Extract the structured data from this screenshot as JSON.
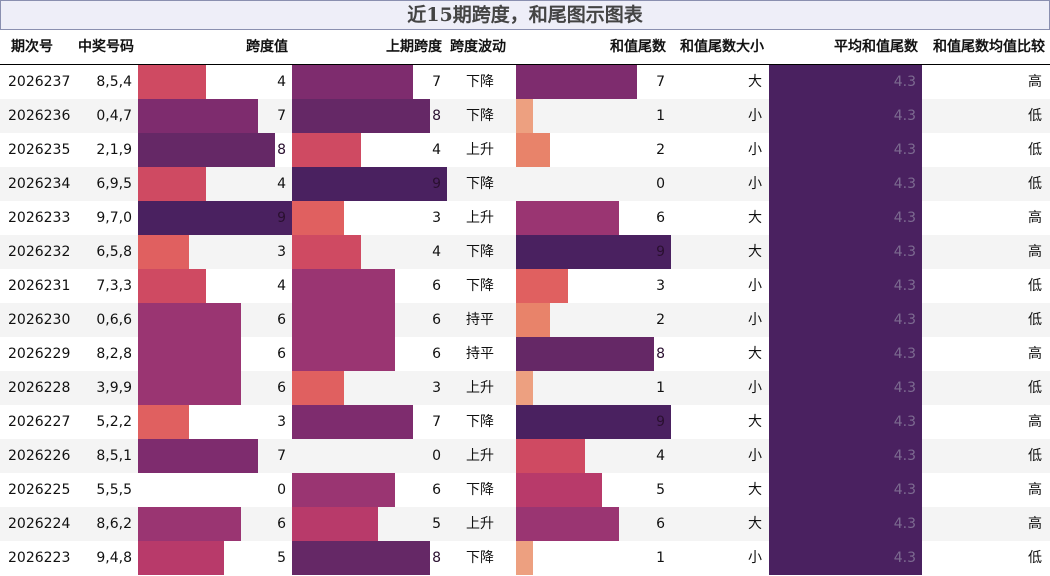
{
  "title": "近15期跨度，和尾图示图表",
  "headers": [
    "期次号",
    "中奖号码",
    "跨度值",
    "上期跨度",
    "跨度波动",
    "和值尾数",
    "和值尾数大小",
    "平均和值尾数",
    "和值尾数均值比较"
  ],
  "chart_data": {
    "type": "table",
    "title": "近15期跨度，和尾图示图表",
    "columns": [
      "期次号",
      "中奖号码",
      "跨度值",
      "上期跨度",
      "跨度波动",
      "和值尾数",
      "和值尾数大小",
      "平均和值尾数",
      "和值尾数均值比较"
    ],
    "bar_max": 9,
    "average_sum_tail": "4.3",
    "rows": [
      {
        "issue": "2026237",
        "numbers": "8,5,4",
        "span": 4,
        "prev_span": 7,
        "trend": "下降",
        "tail": 7,
        "size": "大",
        "compare": "高"
      },
      {
        "issue": "2026236",
        "numbers": "0,4,7",
        "span": 7,
        "prev_span": 8,
        "trend": "下降",
        "tail": 1,
        "size": "小",
        "compare": "低"
      },
      {
        "issue": "2026235",
        "numbers": "2,1,9",
        "span": 8,
        "prev_span": 4,
        "trend": "上升",
        "tail": 2,
        "size": "小",
        "compare": "低"
      },
      {
        "issue": "2026234",
        "numbers": "6,9,5",
        "span": 4,
        "prev_span": 9,
        "trend": "下降",
        "tail": 0,
        "size": "小",
        "compare": "低"
      },
      {
        "issue": "2026233",
        "numbers": "9,7,0",
        "span": 9,
        "prev_span": 3,
        "trend": "上升",
        "tail": 6,
        "size": "大",
        "compare": "高"
      },
      {
        "issue": "2026232",
        "numbers": "6,5,8",
        "span": 3,
        "prev_span": 4,
        "trend": "下降",
        "tail": 9,
        "size": "大",
        "compare": "高"
      },
      {
        "issue": "2026231",
        "numbers": "7,3,3",
        "span": 4,
        "prev_span": 6,
        "trend": "下降",
        "tail": 3,
        "size": "小",
        "compare": "低"
      },
      {
        "issue": "2026230",
        "numbers": "0,6,6",
        "span": 6,
        "prev_span": 6,
        "trend": "持平",
        "tail": 2,
        "size": "小",
        "compare": "低"
      },
      {
        "issue": "2026229",
        "numbers": "8,2,8",
        "span": 6,
        "prev_span": 6,
        "trend": "持平",
        "tail": 8,
        "size": "大",
        "compare": "高"
      },
      {
        "issue": "2026228",
        "numbers": "3,9,9",
        "span": 6,
        "prev_span": 3,
        "trend": "上升",
        "tail": 1,
        "size": "小",
        "compare": "低"
      },
      {
        "issue": "2026227",
        "numbers": "5,2,2",
        "span": 3,
        "prev_span": 7,
        "trend": "下降",
        "tail": 9,
        "size": "大",
        "compare": "高"
      },
      {
        "issue": "2026226",
        "numbers": "8,5,1",
        "span": 7,
        "prev_span": 0,
        "trend": "上升",
        "tail": 4,
        "size": "小",
        "compare": "低"
      },
      {
        "issue": "2026225",
        "numbers": "5,5,5",
        "span": 0,
        "prev_span": 6,
        "trend": "下降",
        "tail": 5,
        "size": "大",
        "compare": "高"
      },
      {
        "issue": "2026224",
        "numbers": "8,6,2",
        "span": 6,
        "prev_span": 5,
        "trend": "上升",
        "tail": 6,
        "size": "大",
        "compare": "高"
      },
      {
        "issue": "2026223",
        "numbers": "9,4,8",
        "span": 5,
        "prev_span": 8,
        "trend": "下降",
        "tail": 1,
        "size": "小",
        "compare": "低"
      }
    ]
  },
  "colors": {
    "level_0": "#f2a07b",
    "level_1": "#eda080",
    "level_2": "#e8836a",
    "level_3": "#e06060",
    "level_4": "#cf4a62",
    "level_5": "#b83a6a",
    "level_6": "#9a3572",
    "level_7": "#7e2c6e",
    "level_8": "#652866",
    "level_9": "#4a2160",
    "average": "#4a2160",
    "header_bg": "#eeeef8",
    "header_border": "#8a8fb0",
    "alt_row": "#f4f4f4"
  }
}
